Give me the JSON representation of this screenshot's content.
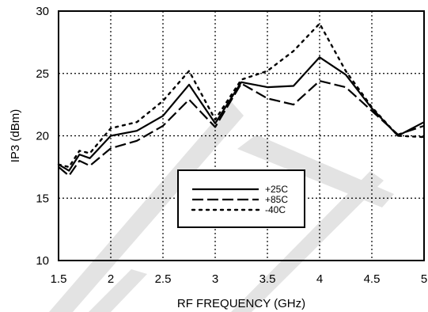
{
  "chart_data": {
    "type": "line",
    "title": "",
    "xlabel": "RF FREQUENCY (GHz)",
    "ylabel": "IP3 (dBm)",
    "xlim": [
      1.5,
      5
    ],
    "ylim": [
      10,
      30
    ],
    "xticks": [
      "1.5",
      "2",
      "2.5",
      "3",
      "3.5",
      "4",
      "4.5",
      "5"
    ],
    "yticks": [
      "10",
      "15",
      "20",
      "25",
      "30"
    ],
    "grid": "dotted",
    "legend_position": "center-right",
    "watermark_color": "#e3e3e3",
    "series": [
      {
        "name": "+25C",
        "style": "solid",
        "x": [
          1.5,
          1.6,
          1.7,
          1.8,
          2.0,
          2.25,
          2.5,
          2.75,
          3.0,
          3.25,
          3.5,
          3.75,
          4.0,
          4.25,
          4.5,
          4.75,
          5.0
        ],
        "y": [
          17.7,
          17.2,
          18.5,
          18.2,
          20.0,
          20.4,
          21.6,
          24.1,
          21.0,
          24.3,
          23.9,
          24.0,
          26.3,
          24.9,
          22.2,
          20.0,
          21.1
        ]
      },
      {
        "name": "+85C",
        "style": "dashed",
        "x": [
          1.5,
          1.6,
          1.7,
          1.8,
          2.0,
          2.25,
          2.5,
          2.75,
          3.0,
          3.25,
          3.5,
          3.75,
          4.0,
          4.25,
          4.5,
          4.75,
          5.0
        ],
        "y": [
          17.5,
          16.8,
          18.0,
          17.6,
          19.0,
          19.6,
          20.8,
          22.9,
          20.7,
          24.2,
          23.0,
          22.5,
          24.4,
          23.9,
          22.0,
          20.1,
          20.8
        ]
      },
      {
        "name": "-40C",
        "style": "dotted",
        "x": [
          1.5,
          1.6,
          1.7,
          1.8,
          2.0,
          2.25,
          2.5,
          2.75,
          3.0,
          3.25,
          3.5,
          3.75,
          4.0,
          4.25,
          4.5,
          4.75,
          5.0
        ],
        "y": [
          17.7,
          17.5,
          18.8,
          18.6,
          20.6,
          21.1,
          22.8,
          25.2,
          21.3,
          24.5,
          25.2,
          26.8,
          29.0,
          25.2,
          22.3,
          20.0,
          19.9
        ]
      }
    ]
  }
}
